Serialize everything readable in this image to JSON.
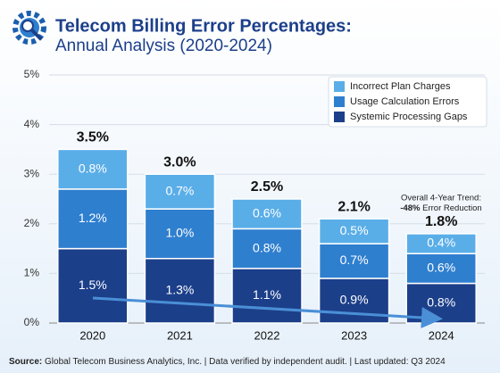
{
  "chart_data": {
    "type": "stacked_bar",
    "title": "Telecom Billing Error Percentages:",
    "subtitle": "Annual Analysis (2020-2024)",
    "categories": [
      "2020",
      "2021",
      "2022",
      "2023",
      "2024"
    ],
    "series": [
      {
        "name": "Incorrect Plan Charges",
        "color": "#5aaee8",
        "values": [
          0.8,
          0.7,
          0.6,
          0.5,
          0.4
        ],
        "value_labels": [
          "0.8%",
          "0.7%",
          "0.6%",
          "0.5%",
          "0.4%"
        ]
      },
      {
        "name": "Usage Calculation Errors",
        "color": "#2f7fcf",
        "values": [
          1.2,
          1.0,
          0.8,
          0.7,
          0.6
        ],
        "value_labels": [
          "1.2%",
          "1.0%",
          "0.8%",
          "0.7%",
          "0.6%"
        ]
      },
      {
        "name": "Systemic Processing Gaps",
        "color": "#1c3f8a",
        "values": [
          1.5,
          1.3,
          1.1,
          0.9,
          0.8
        ],
        "value_labels": [
          "1.5%",
          "1.3%",
          "1.1%",
          "0.9%",
          "0.8%"
        ]
      }
    ],
    "totals": {
      "values": [
        3.5,
        3.0,
        2.5,
        2.1,
        1.8
      ],
      "value_labels": [
        "3.5%",
        "3.0%",
        "2.5%",
        "2.1%",
        "1.8%"
      ]
    },
    "ylim": [
      0,
      5
    ],
    "yticks": [
      {
        "value": 0,
        "label": "0%"
      },
      {
        "value": 1,
        "label": "1%"
      },
      {
        "value": 2,
        "label": "2%"
      },
      {
        "value": 3,
        "label": "3%"
      },
      {
        "value": 4,
        "label": "4%"
      },
      {
        "value": 5,
        "label": "5%"
      }
    ],
    "grid": true,
    "legend": "top-right",
    "annotation": {
      "line1": "Overall 4-Year Trend:",
      "bold": "-48%",
      "rest": " Error Reduction"
    },
    "source_label": "Source:",
    "source": " Global Telecom Business Analytics, Inc. | Data verified by independent audit. | Last updated: Q3 2024"
  }
}
